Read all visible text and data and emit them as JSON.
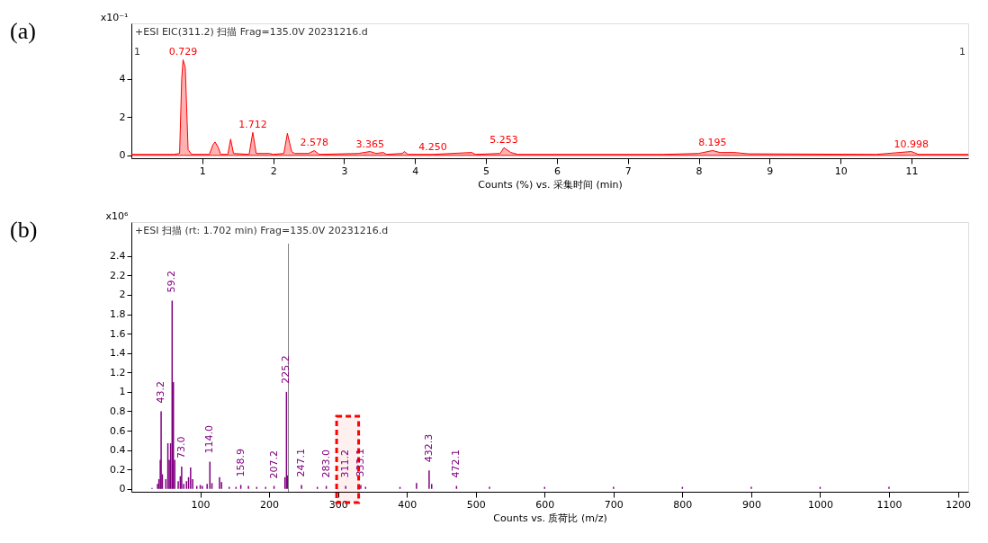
{
  "chart_data": [
    {
      "type": "area",
      "title": "+ESI EIC(311.2) 扫描 Frag=135.0V 20231216.d",
      "xlabel": "Counts (%) vs. 采集时间 (min)",
      "ylabel": "x10⁻¹",
      "x": [
        0,
        0.6,
        0.68,
        0.71,
        0.729,
        0.76,
        0.8,
        0.85,
        1.1,
        1.15,
        1.18,
        1.22,
        1.26,
        1.36,
        1.4,
        1.44,
        1.66,
        1.712,
        1.76,
        1.95,
        2.0,
        2.15,
        2.2,
        2.26,
        2.3,
        2.5,
        2.578,
        2.65,
        3.2,
        3.365,
        3.45,
        3.55,
        3.6,
        3.82,
        3.85,
        3.9,
        4.25,
        4.8,
        4.85,
        5.2,
        5.253,
        5.35,
        5.45,
        7.5,
        8.0,
        8.195,
        8.3,
        8.5,
        8.7,
        10.5,
        10.998,
        11.1,
        11.8
      ],
      "series": [
        {
          "color": "#ff0000",
          "values": [
            0.05,
            0.05,
            0.1,
            4.0,
            5.0,
            4.6,
            0.3,
            0.05,
            0.05,
            0.55,
            0.7,
            0.45,
            0.05,
            0.05,
            0.85,
            0.1,
            0.05,
            1.2,
            0.1,
            0.1,
            0.05,
            0.1,
            1.15,
            0.2,
            0.1,
            0.1,
            0.25,
            0.05,
            0.1,
            0.2,
            0.1,
            0.15,
            0.05,
            0.1,
            0.2,
            0.05,
            0.05,
            0.15,
            0.05,
            0.1,
            0.4,
            0.15,
            0.05,
            0.05,
            0.1,
            0.25,
            0.15,
            0.15,
            0.08,
            0.05,
            0.2,
            0.05,
            0.05
          ]
        }
      ],
      "xlim": [
        0,
        11.8
      ],
      "ylim": [
        -0.15,
        6.9
      ],
      "xticks": [
        1,
        2,
        3,
        4,
        5,
        6,
        7,
        8,
        9,
        10,
        11
      ],
      "yticks": [
        0,
        2,
        4
      ],
      "annotations": [
        "(a)",
        "1",
        "1",
        {
          "text": "0.729",
          "x": 0.729,
          "y": 5.0
        },
        {
          "text": "1.712",
          "x": 1.712,
          "y": 1.2
        },
        {
          "text": "2.578",
          "x": 2.578,
          "y": 0.25
        },
        {
          "text": "3.365",
          "x": 3.365,
          "y": 0.2
        },
        {
          "text": "4.250",
          "x": 4.25,
          "y": 0.05
        },
        {
          "text": "5.253",
          "x": 5.253,
          "y": 0.4
        },
        {
          "text": "8.195",
          "x": 8.195,
          "y": 0.25
        },
        {
          "text": "10.998",
          "x": 10.998,
          "y": 0.2
        }
      ]
    },
    {
      "type": "bar",
      "title": "+ESI 扫描 (rt: 1.702 min) Frag=135.0V 20231216.d",
      "xlabel": "Counts vs. 质荷比 (m/z)",
      "ylabel": "x10⁶",
      "x": [
        30,
        38,
        40,
        42,
        43.2,
        45,
        50,
        53,
        55,
        57,
        59.2,
        61,
        63,
        68,
        71,
        73.0,
        76,
        80,
        83,
        86,
        89,
        95,
        100,
        103,
        110,
        114.0,
        117,
        128,
        131,
        142,
        152,
        158.9,
        170,
        182,
        195,
        207.2,
        223,
        225.2,
        227,
        247.1,
        270,
        283.0,
        311.2,
        333.1,
        340,
        390,
        414,
        432.3,
        436,
        472.1,
        520,
        600,
        700,
        800,
        900,
        1000,
        1100
      ],
      "series": [
        {
          "color": "#800080",
          "values": [
            0.01,
            0.05,
            0.1,
            0.3,
            0.8,
            0.15,
            0.1,
            0.47,
            0.3,
            0.47,
            1.94,
            1.1,
            0.3,
            0.08,
            0.13,
            0.23,
            0.05,
            0.08,
            0.12,
            0.22,
            0.1,
            0.03,
            0.04,
            0.03,
            0.05,
            0.28,
            0.06,
            0.12,
            0.07,
            0.02,
            0.02,
            0.04,
            0.03,
            0.02,
            0.02,
            0.03,
            0.12,
            1.0,
            0.14,
            0.04,
            0.02,
            0.03,
            0.03,
            0.04,
            0.02,
            0.02,
            0.06,
            0.19,
            0.05,
            0.03,
            0.02,
            0.02,
            0.02,
            0.02,
            0.02,
            0.02,
            0.02
          ]
        }
      ],
      "xlim": [
        0,
        1215
      ],
      "ylim": [
        -0.03,
        2.75
      ],
      "xticks": [
        100,
        200,
        300,
        400,
        500,
        600,
        700,
        800,
        900,
        1000,
        1100,
        1200
      ],
      "yticks": [
        0,
        0.2,
        0.4,
        0.6,
        0.8,
        1,
        1.2,
        1.4,
        1.6,
        1.8,
        2,
        2.2,
        2.4
      ],
      "ref_lines": [
        {
          "axis": "x",
          "value": 228,
          "color": "#808080"
        }
      ],
      "bands": [
        {
          "axis": "x",
          "from": 298,
          "to": 330,
          "color": "#ff0000"
        }
      ],
      "annotations": [
        "(b)",
        {
          "text": "43.2",
          "x": 43.2,
          "y": 0.8
        },
        {
          "text": "59.2",
          "x": 59.2,
          "y": 1.94
        },
        {
          "text": "73.0",
          "x": 73.0,
          "y": 0.23
        },
        {
          "text": "114.0",
          "x": 114.0,
          "y": 0.28
        },
        {
          "text": "158.9",
          "x": 158.9,
          "y": 0.04
        },
        {
          "text": "207.2",
          "x": 207.2,
          "y": 0.02
        },
        {
          "text": "225.2",
          "x": 225.2,
          "y": 1.0
        },
        {
          "text": "247.1",
          "x": 247.1,
          "y": 0.04
        },
        {
          "text": "283.0",
          "x": 283.0,
          "y": 0.03
        },
        {
          "text": "311.2",
          "x": 311.2,
          "y": 0.03
        },
        {
          "text": "333.1",
          "x": 333.1,
          "y": 0.04
        },
        {
          "text": "432.3",
          "x": 432.3,
          "y": 0.19
        },
        {
          "text": "472.1",
          "x": 472.1,
          "y": 0.03
        }
      ]
    }
  ]
}
